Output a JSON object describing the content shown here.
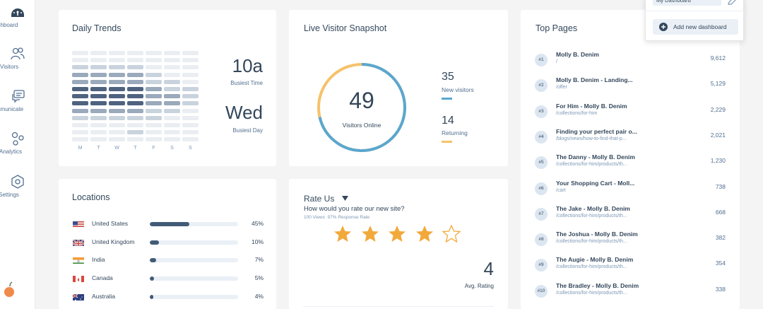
{
  "sidebar": {
    "items": [
      {
        "label": "ashboard",
        "icon": "dashboard-icon",
        "active": true
      },
      {
        "label": "Visitors",
        "icon": "visitors-icon"
      },
      {
        "label": "mmunicate",
        "icon": "communicate-icon"
      },
      {
        "label": "Analytics",
        "icon": "analytics-icon"
      },
      {
        "label": "Settings",
        "icon": "settings-icon"
      }
    ],
    "bottom_icon": "fruit-logo-icon"
  },
  "daily_trends": {
    "title": "Daily Trends",
    "days": [
      "M",
      "T",
      "W",
      "T",
      "F",
      "S",
      "S"
    ],
    "heatmap_levels": [
      [
        1,
        1,
        1,
        1,
        1,
        1,
        1
      ],
      [
        1,
        1,
        1,
        1,
        1,
        1,
        1
      ],
      [
        2,
        2,
        2,
        2,
        1,
        1,
        1
      ],
      [
        3,
        3,
        3,
        3,
        2,
        1,
        1
      ],
      [
        3,
        3,
        3,
        3,
        2,
        2,
        1
      ],
      [
        4,
        4,
        4,
        4,
        3,
        2,
        2
      ],
      [
        4,
        4,
        4,
        4,
        3,
        3,
        2
      ],
      [
        4,
        4,
        4,
        4,
        3,
        3,
        2
      ],
      [
        3,
        3,
        3,
        3,
        2,
        2,
        1
      ],
      [
        2,
        2,
        2,
        2,
        2,
        1,
        1
      ],
      [
        1,
        1,
        1,
        1,
        1,
        1,
        1
      ],
      [
        1,
        1,
        1,
        2,
        1,
        1,
        1
      ],
      [
        1,
        1,
        1,
        1,
        1,
        1,
        1
      ]
    ],
    "busiest_time": "10a",
    "busiest_time_label": "Busiest Time",
    "busiest_day": "Wed",
    "busiest_day_label": "Busiest Day"
  },
  "live_snapshot": {
    "title": "Live Visitor Snapshot",
    "online": "49",
    "online_label": "Visitors Online",
    "new_visitors": "35",
    "new_visitors_label": "New visitors",
    "returning": "14",
    "returning_label": "Returning",
    "new_fraction": 0.714,
    "colors": {
      "new": "#5aa7cf",
      "returning": "#f5c26b"
    }
  },
  "top_pages": {
    "title": "Top Pages",
    "rows": [
      {
        "rank": "#1",
        "title": "Molly B. Denim",
        "path": "/",
        "count": "9,612"
      },
      {
        "rank": "#2",
        "title": "Molly B. Denim - Landing...",
        "path": "/offer",
        "count": "5,129"
      },
      {
        "rank": "#3",
        "title": "For Him - Molly B. Denim",
        "path": "/collections/for-him",
        "count": "2,229"
      },
      {
        "rank": "#4",
        "title": "Finding your perfect pair o...",
        "path": "/blogs/news/how-to-find-that-p...",
        "count": "2,021"
      },
      {
        "rank": "#5",
        "title": "The Danny - Molly B. Denim",
        "path": "/collections/for-him/products/th...",
        "count": "1,230"
      },
      {
        "rank": "#6",
        "title": "Your Shopping Cart - Moll...",
        "path": "/cart",
        "count": "738"
      },
      {
        "rank": "#7",
        "title": "The Jake - Molly B. Denim",
        "path": "/collections/for-him/products/th...",
        "count": "668"
      },
      {
        "rank": "#8",
        "title": "The Joshua - Molly B. Denim",
        "path": "/collections/for-him/products/th...",
        "count": "382"
      },
      {
        "rank": "#9",
        "title": "The Augie - Molly B. Denim",
        "path": "/collections/for-him/products/th...",
        "count": "354"
      },
      {
        "rank": "#10",
        "title": "The Bradley - Molly B. Denim",
        "path": "/collections/for-him/products/th...",
        "count": "338"
      }
    ]
  },
  "locations": {
    "title": "Locations",
    "rows": [
      {
        "country": "United States",
        "pct": "45%",
        "fraction": 0.45,
        "flag": "us"
      },
      {
        "country": "United Kingdom",
        "pct": "10%",
        "fraction": 0.1,
        "flag": "uk"
      },
      {
        "country": "India",
        "pct": "7%",
        "fraction": 0.07,
        "flag": "in"
      },
      {
        "country": "Canada",
        "pct": "5%",
        "fraction": 0.05,
        "flag": "ca"
      },
      {
        "country": "Australia",
        "pct": "4%",
        "fraction": 0.04,
        "flag": "au"
      }
    ]
  },
  "rate_us": {
    "title": "Rate Us",
    "question": "How would you rate our new site?",
    "views": "100 Views",
    "response_rate": "97% Response Rate",
    "rating": "4",
    "rating_label": "Avg. Rating",
    "stars_filled": 4,
    "stars_total": 5,
    "star_color": "#f2a93b"
  },
  "dashboard_menu": {
    "current": "My Dashboard",
    "add_label": "Add new dashboard"
  }
}
